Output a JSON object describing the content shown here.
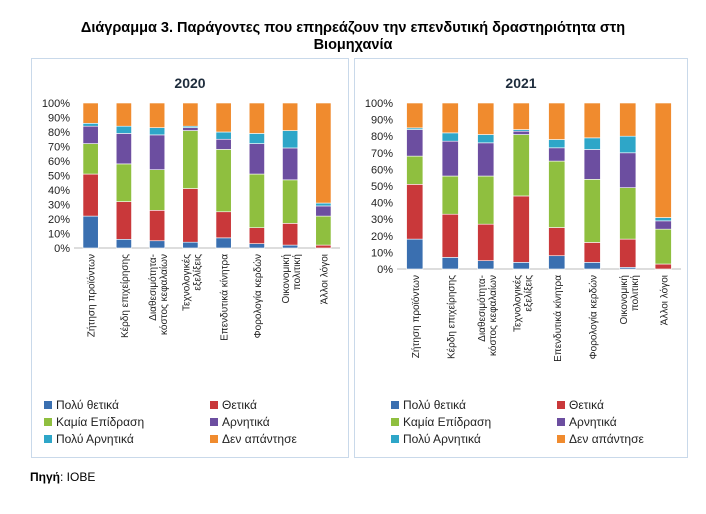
{
  "title_line1": "Διάγραμμα 3. Παράγοντες που επηρεάζουν την επενδυτική δραστηριότητα στη",
  "title_line2": "Βιομηχανία",
  "source_label": "Πηγή",
  "source_value": ": ΙΟΒΕ",
  "colors": {
    "very_positive": "#3a6fb0",
    "positive": "#c9383a",
    "no_effect": "#8fbf3f",
    "negative": "#6c4ea0",
    "very_negative": "#2ea6c8",
    "no_answer": "#f08b2e"
  },
  "chart_data": [
    {
      "type": "bar",
      "stacked": true,
      "title": "2020",
      "categories": [
        "Ζήτηση προϊόντων",
        "Κέρδη επιχείρησης",
        "Διαθεσιμότητα-κόστος κεφαλαίων",
        "Τεχνολογικές εξελίξεις",
        "Επενδυτικά κίνητρα",
        "Φορολογία κερδών",
        "Οικονομική πολιτική",
        "Άλλοι λόγοι"
      ],
      "yticks": [
        "0%",
        "10%",
        "20%",
        "30%",
        "40%",
        "50%",
        "60%",
        "70%",
        "80%",
        "90%",
        "100%"
      ],
      "ylim": [
        0,
        100
      ],
      "series": [
        {
          "name": "Πολύ θετικά",
          "color_key": "very_positive",
          "values": [
            22,
            6,
            5,
            4,
            7,
            3,
            2,
            0
          ]
        },
        {
          "name": "Θετικά",
          "color_key": "positive",
          "values": [
            29,
            26,
            21,
            37,
            18,
            11,
            15,
            2
          ]
        },
        {
          "name": "Καμία Επίδραση",
          "color_key": "no_effect",
          "values": [
            21,
            26,
            28,
            40,
            43,
            37,
            30,
            20
          ]
        },
        {
          "name": "Αρνητικά",
          "color_key": "negative",
          "values": [
            12,
            21,
            24,
            2,
            7,
            21,
            22,
            7
          ]
        },
        {
          "name": "Πολύ Αρνητικά",
          "color_key": "very_negative",
          "values": [
            2,
            5,
            5,
            1,
            5,
            7,
            12,
            2
          ]
        },
        {
          "name": "Δεν απάντησε",
          "color_key": "no_answer",
          "values": [
            14,
            16,
            17,
            16,
            20,
            21,
            19,
            69
          ]
        }
      ]
    },
    {
      "type": "bar",
      "stacked": true,
      "title": "2021",
      "categories": [
        "Ζήτηση προϊόντων",
        "Κέρδη επιχείρησης",
        "Διαθεσιμότητα-κόστος κεφαλαίων",
        "Τεχνολογικές εξελίξεις",
        "Επενδυτικά κίνητρα",
        "Φορολογία κερδών",
        "Οικονομική πολιτική",
        "Άλλοι λόγοι"
      ],
      "yticks": [
        "0%",
        "10%",
        "20%",
        "30%",
        "40%",
        "50%",
        "60%",
        "70%",
        "80%",
        "90%",
        "100%"
      ],
      "ylim": [
        0,
        100
      ],
      "series": [
        {
          "name": "Πολύ θετικά",
          "color_key": "very_positive",
          "values": [
            18,
            7,
            5,
            4,
            8,
            4,
            1,
            0
          ]
        },
        {
          "name": "Θετικά",
          "color_key": "positive",
          "values": [
            33,
            26,
            22,
            40,
            17,
            12,
            17,
            3
          ]
        },
        {
          "name": "Καμία Επίδραση",
          "color_key": "no_effect",
          "values": [
            17,
            23,
            29,
            37,
            40,
            38,
            31,
            21
          ]
        },
        {
          "name": "Αρνητικά",
          "color_key": "negative",
          "values": [
            16,
            21,
            20,
            2,
            8,
            18,
            21,
            5
          ]
        },
        {
          "name": "Πολύ Αρνητικά",
          "color_key": "very_negative",
          "values": [
            1,
            5,
            5,
            1,
            5,
            7,
            10,
            2
          ]
        },
        {
          "name": "Δεν απάντησε",
          "color_key": "no_answer",
          "values": [
            15,
            18,
            19,
            16,
            22,
            21,
            20,
            69
          ]
        }
      ]
    }
  ]
}
